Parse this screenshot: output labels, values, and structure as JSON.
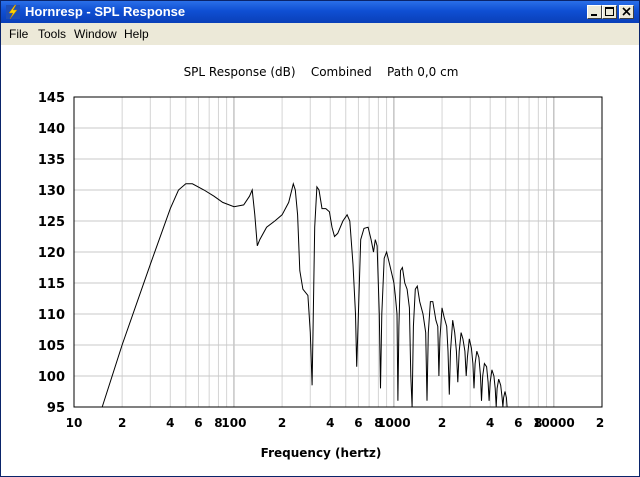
{
  "window": {
    "title": "Hornresp - SPL Response",
    "icon": "hornresp-lightning-icon"
  },
  "menu": {
    "items": [
      {
        "id": "file",
        "label": "File"
      },
      {
        "id": "tools",
        "label": "Tools"
      },
      {
        "id": "window",
        "label": "Window"
      },
      {
        "id": "help",
        "label": "Help"
      }
    ]
  },
  "chart_data": {
    "type": "line",
    "title": "SPL Response (dB)    Combined    Path 0,0 cm",
    "xlabel": "Frequency (hertz)",
    "ylabel": "",
    "xscale": "log",
    "xlim": [
      10,
      20000
    ],
    "ylim": [
      95,
      145
    ],
    "grid": true,
    "xticks": [
      {
        "value": 10,
        "label": "10"
      },
      {
        "value": 20,
        "label": "2"
      },
      {
        "value": 40,
        "label": "4"
      },
      {
        "value": 60,
        "label": "6"
      },
      {
        "value": 80,
        "label": "8"
      },
      {
        "value": 100,
        "label": "100"
      },
      {
        "value": 200,
        "label": "2"
      },
      {
        "value": 400,
        "label": "4"
      },
      {
        "value": 600,
        "label": "6"
      },
      {
        "value": 800,
        "label": "8"
      },
      {
        "value": 1000,
        "label": "1000"
      },
      {
        "value": 2000,
        "label": "2"
      },
      {
        "value": 4000,
        "label": "4"
      },
      {
        "value": 6000,
        "label": "6"
      },
      {
        "value": 8000,
        "label": "8"
      },
      {
        "value": 10000,
        "label": "10000"
      },
      {
        "value": 20000,
        "label": "2"
      }
    ],
    "yticks": [
      95,
      100,
      105,
      110,
      115,
      120,
      125,
      130,
      135,
      140,
      145
    ],
    "series": [
      {
        "name": "",
        "color": "#000000",
        "points": [
          [
            15,
            95
          ],
          [
            20,
            105
          ],
          [
            30,
            118
          ],
          [
            40,
            127
          ],
          [
            45,
            130
          ],
          [
            50,
            131
          ],
          [
            55,
            131
          ],
          [
            65,
            130
          ],
          [
            75,
            129
          ],
          [
            85,
            128
          ],
          [
            100,
            127.3
          ],
          [
            115,
            127.6
          ],
          [
            125,
            129
          ],
          [
            130,
            130
          ],
          [
            135,
            126
          ],
          [
            140,
            121
          ],
          [
            145,
            122
          ],
          [
            160,
            124
          ],
          [
            180,
            125
          ],
          [
            200,
            126
          ],
          [
            220,
            128
          ],
          [
            235,
            131
          ],
          [
            242,
            130
          ],
          [
            250,
            126
          ],
          [
            258,
            117
          ],
          [
            270,
            114
          ],
          [
            290,
            113
          ],
          [
            300,
            107
          ],
          [
            308,
            98.5
          ],
          [
            312,
            107
          ],
          [
            320,
            124
          ],
          [
            330,
            130.5
          ],
          [
            340,
            130
          ],
          [
            355,
            127
          ],
          [
            375,
            127
          ],
          [
            395,
            126.5
          ],
          [
            410,
            124
          ],
          [
            425,
            122.5
          ],
          [
            445,
            123
          ],
          [
            480,
            125
          ],
          [
            510,
            126
          ],
          [
            530,
            125
          ],
          [
            555,
            118
          ],
          [
            575,
            110
          ],
          [
            585,
            101.5
          ],
          [
            600,
            110
          ],
          [
            620,
            122
          ],
          [
            650,
            123.8
          ],
          [
            690,
            124
          ],
          [
            720,
            122
          ],
          [
            745,
            120
          ],
          [
            765,
            122
          ],
          [
            785,
            121
          ],
          [
            810,
            110
          ],
          [
            825,
            98
          ],
          [
            840,
            110
          ],
          [
            870,
            119
          ],
          [
            900,
            120
          ],
          [
            940,
            118
          ],
          [
            980,
            116
          ],
          [
            1000,
            115
          ],
          [
            1020,
            113
          ],
          [
            1045,
            110
          ],
          [
            1060,
            96
          ],
          [
            1075,
            108
          ],
          [
            1100,
            117
          ],
          [
            1130,
            117.5
          ],
          [
            1170,
            115
          ],
          [
            1210,
            114
          ],
          [
            1250,
            111
          ],
          [
            1275,
            100
          ],
          [
            1300,
            95
          ],
          [
            1325,
            108
          ],
          [
            1360,
            114
          ],
          [
            1400,
            114.5
          ],
          [
            1450,
            112
          ],
          [
            1520,
            110
          ],
          [
            1580,
            107
          ],
          [
            1610,
            96
          ],
          [
            1640,
            107
          ],
          [
            1690,
            112
          ],
          [
            1750,
            112
          ],
          [
            1830,
            109
          ],
          [
            1880,
            108
          ],
          [
            1910,
            100
          ],
          [
            1940,
            106
          ],
          [
            2000,
            111
          ],
          [
            2060,
            109.5
          ],
          [
            2140,
            108
          ],
          [
            2180,
            104
          ],
          [
            2220,
            97
          ],
          [
            2260,
            104
          ],
          [
            2330,
            109
          ],
          [
            2400,
            107
          ],
          [
            2460,
            104
          ],
          [
            2510,
            99
          ],
          [
            2560,
            104
          ],
          [
            2630,
            107
          ],
          [
            2700,
            106
          ],
          [
            2780,
            104
          ],
          [
            2830,
            100
          ],
          [
            2880,
            103
          ],
          [
            2960,
            106
          ],
          [
            3050,
            104.5
          ],
          [
            3120,
            102
          ],
          [
            3170,
            98
          ],
          [
            3220,
            102
          ],
          [
            3300,
            104
          ],
          [
            3400,
            103
          ],
          [
            3480,
            100
          ],
          [
            3530,
            96
          ],
          [
            3590,
            100
          ],
          [
            3680,
            102
          ],
          [
            3800,
            101.5
          ],
          [
            3880,
            99
          ],
          [
            3940,
            96
          ],
          [
            4000,
            99
          ],
          [
            4100,
            101
          ],
          [
            4220,
            100
          ],
          [
            4300,
            98
          ],
          [
            4360,
            95
          ],
          [
            4420,
            98
          ],
          [
            4520,
            99.5
          ],
          [
            4650,
            98.5
          ],
          [
            4750,
            96.5
          ],
          [
            4800,
            95
          ],
          [
            4850,
            96.5
          ],
          [
            4950,
            97.5
          ],
          [
            5050,
            96.5
          ],
          [
            5100,
            95
          ]
        ]
      }
    ]
  }
}
